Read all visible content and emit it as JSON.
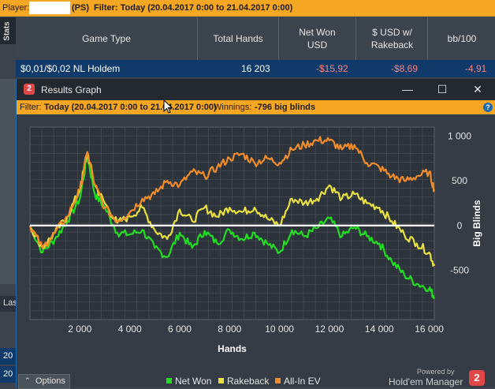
{
  "top_filter": {
    "player_label": "Player:",
    "site": "(PS)",
    "filter_text": "Filter: Today (20.04.2017 0:00 to 21.04.2017 0:00)"
  },
  "stats_tab": "Stats",
  "table": {
    "headers": [
      "Game Type",
      "Total Hands",
      "Net Won USD",
      "$ USD w/ Rakeback",
      "bb/100"
    ],
    "row": {
      "game": "$0,01/$0,02 NL Holdem",
      "hands": "16 203",
      "net": "-$15,92",
      "rakeback": "-$8,69",
      "bb100": "-4,91"
    }
  },
  "left_edge": {
    "las": "Las",
    "row1": "20",
    "row2": "20"
  },
  "window": {
    "badge": "2",
    "title": "Results Graph",
    "controls": {
      "minimize": "—",
      "maximize": "☐",
      "close": "✕"
    },
    "filter": {
      "prefix": "Filter:",
      "range": "Today (20.04.2017 0:00 to 21.04.2017 0:00)",
      "winnings_label": "Winnings:",
      "winnings_value": "-796 big blinds"
    },
    "help": "?",
    "options_label": "Options",
    "powered_by": "Powered by",
    "brand": "Hold'em Manager",
    "brand_badge": "2"
  },
  "chart_data": {
    "type": "line",
    "xlabel": "Hands",
    "ylabel": "Big Blinds",
    "xlim": [
      0,
      16203
    ],
    "ylim": [
      -1050,
      1100
    ],
    "x_ticks": [
      2000,
      4000,
      6000,
      8000,
      10000,
      12000,
      14000,
      16000
    ],
    "x_tick_labels": [
      "2 000",
      "4 000",
      "6 000",
      "8 000",
      "10 000",
      "12 000",
      "14 000",
      "16 000"
    ],
    "y_ticks": [
      1000,
      500,
      0,
      -500
    ],
    "y_tick_labels": [
      "1 000",
      "500",
      "0",
      "-500"
    ],
    "legend_position": "bottom",
    "series": [
      {
        "name": "Net Won",
        "color": "#22dd22",
        "x": [
          0,
          500,
          1000,
          1500,
          2000,
          2300,
          2600,
          3000,
          3500,
          4000,
          4500,
          5000,
          5500,
          6000,
          6500,
          7000,
          7500,
          8000,
          8500,
          9000,
          9500,
          10000,
          10500,
          11000,
          11500,
          12000,
          12500,
          13000,
          13500,
          14000,
          14500,
          15000,
          15500,
          16000,
          16203
        ],
        "y": [
          0,
          -300,
          -150,
          50,
          300,
          780,
          350,
          200,
          -80,
          -100,
          -50,
          -250,
          -350,
          -80,
          -250,
          -60,
          -200,
          -50,
          -150,
          -80,
          -200,
          -300,
          -50,
          -120,
          -30,
          80,
          -120,
          -20,
          -120,
          -200,
          -400,
          -550,
          -650,
          -700,
          -800
        ]
      },
      {
        "name": "Rakeback",
        "color": "#e8e040",
        "x": [
          0,
          500,
          1000,
          1500,
          2000,
          2300,
          2600,
          3000,
          3500,
          4000,
          4500,
          5000,
          5500,
          6000,
          6500,
          7000,
          7500,
          8000,
          8500,
          9000,
          9500,
          10000,
          10500,
          11000,
          11500,
          12000,
          12500,
          13000,
          13500,
          14000,
          14500,
          15000,
          15500,
          16000,
          16203
        ],
        "y": [
          0,
          -250,
          -80,
          100,
          400,
          820,
          450,
          250,
          30,
          100,
          200,
          -50,
          -150,
          180,
          50,
          200,
          100,
          200,
          150,
          200,
          80,
          0,
          300,
          250,
          300,
          450,
          300,
          350,
          250,
          200,
          50,
          -100,
          -200,
          -300,
          -450
        ]
      },
      {
        "name": "All-In EV",
        "color": "#f08c2a",
        "x": [
          0,
          500,
          1000,
          1500,
          2000,
          2300,
          2600,
          3000,
          3500,
          4000,
          4500,
          5000,
          5500,
          6000,
          6500,
          7000,
          7500,
          8000,
          8500,
          9000,
          9500,
          10000,
          10500,
          11000,
          11500,
          12000,
          12500,
          13000,
          13500,
          14000,
          14500,
          15000,
          15500,
          16000,
          16203
        ],
        "y": [
          0,
          -250,
          -80,
          100,
          400,
          820,
          450,
          200,
          50,
          150,
          300,
          350,
          500,
          450,
          600,
          550,
          650,
          750,
          800,
          700,
          750,
          700,
          850,
          900,
          950,
          950,
          850,
          900,
          700,
          650,
          550,
          500,
          550,
          600,
          400
        ]
      },
      {
        "name": "",
        "color": "#ffffff",
        "x": [
          0,
          16203
        ],
        "y": [
          0,
          0
        ]
      }
    ]
  }
}
